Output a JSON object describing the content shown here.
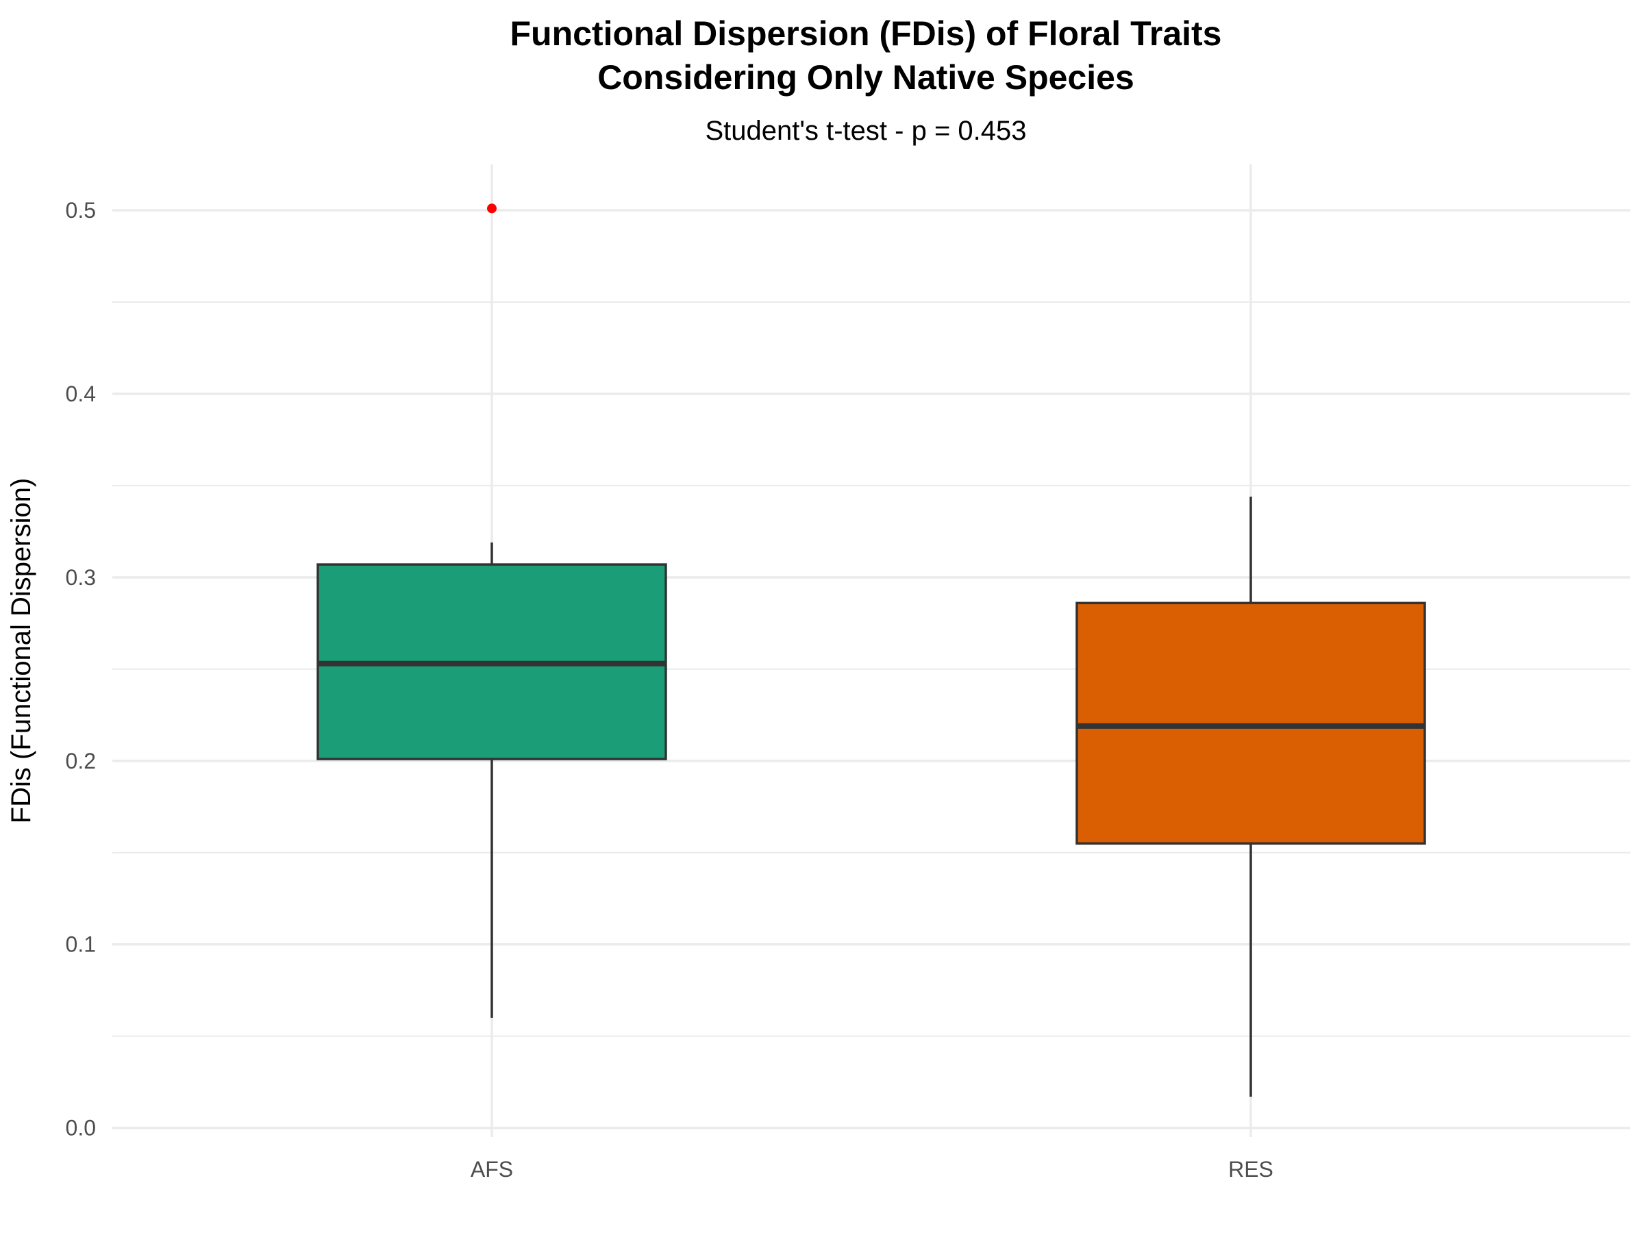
{
  "chart_data": {
    "type": "boxplot",
    "title_lines": [
      "Functional Dispersion (FDis) of Floral Traits",
      "Considering Only Native Species"
    ],
    "subtitle": "Student's t-test - p = 0.453",
    "xlabel": "",
    "ylabel": "FDis (Functional Dispersion)",
    "ylim": [
      -0.005,
      0.525
    ],
    "y_ticks": [
      0.0,
      0.1,
      0.2,
      0.3,
      0.4,
      0.5
    ],
    "y_tick_labels": [
      "0.0",
      "0.1",
      "0.2",
      "0.3",
      "0.4",
      "0.5"
    ],
    "grid": true,
    "legend": "none",
    "categories": [
      "AFS",
      "RES"
    ],
    "boxes": [
      {
        "category": "AFS",
        "whisker_low": 0.06,
        "q1": 0.201,
        "median": 0.253,
        "q3": 0.307,
        "whisker_high": 0.319,
        "outliers": [
          0.501
        ],
        "color": "#1B9E77"
      },
      {
        "category": "RES",
        "whisker_low": 0.017,
        "q1": 0.155,
        "median": 0.219,
        "q3": 0.286,
        "whisker_high": 0.344,
        "outliers": [],
        "color": "#D95F02"
      }
    ],
    "outlier_color": "#FF0000",
    "box_line_color": "#333333",
    "grid_color": "#EBEBEB"
  }
}
